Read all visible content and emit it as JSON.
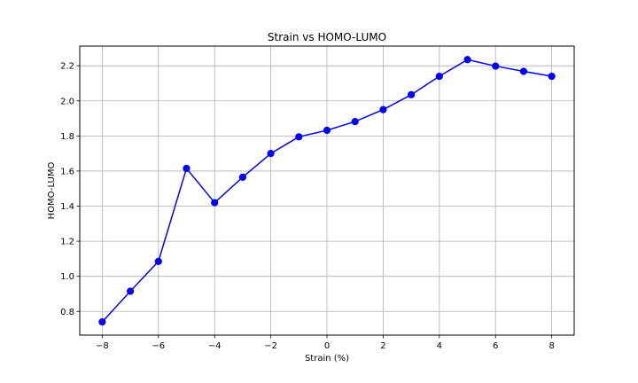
{
  "chart_data": {
    "type": "line",
    "title": "Strain vs HOMO-LUMO",
    "xlabel": "Strain (%)",
    "ylabel": "HOMO-LUMO",
    "xlim": [
      -8.8,
      8.8
    ],
    "ylim": [
      0.665,
      2.312
    ],
    "xticks": [
      -8,
      -6,
      -4,
      -2,
      0,
      2,
      4,
      6,
      8
    ],
    "xtick_labels": [
      "−8",
      "−6",
      "−4",
      "−2",
      "0",
      "2",
      "4",
      "6",
      "8"
    ],
    "yticks": [
      0.8,
      1.0,
      1.2,
      1.4,
      1.6,
      1.8,
      2.0,
      2.2
    ],
    "ytick_labels": [
      "0.8",
      "1.0",
      "1.2",
      "1.4",
      "1.6",
      "1.8",
      "2.0",
      "2.2"
    ],
    "grid": true,
    "series": [
      {
        "color": "#0000ff",
        "marker": "circle",
        "x": [
          -8,
          -7,
          -6,
          -5,
          -4,
          -3,
          -2,
          -1,
          0,
          1,
          2,
          3,
          4,
          5,
          6,
          7,
          8
        ],
        "y": [
          0.74,
          0.915,
          1.085,
          1.615,
          1.42,
          1.565,
          1.7,
          1.795,
          1.832,
          1.882,
          1.95,
          2.035,
          2.14,
          2.235,
          2.198,
          2.168,
          2.14
        ]
      }
    ]
  }
}
